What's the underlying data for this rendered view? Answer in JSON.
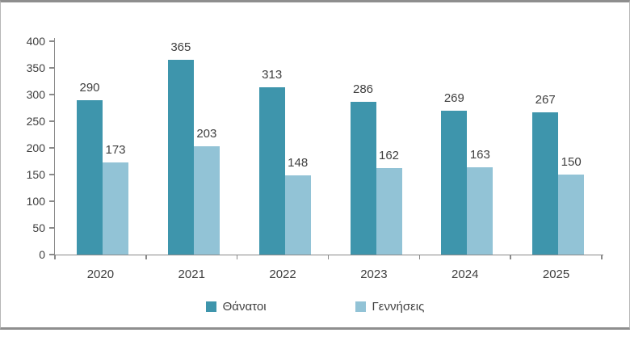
{
  "chart_data": {
    "type": "bar",
    "title": "",
    "categories": [
      "2020",
      "2021",
      "2022",
      "2023",
      "2024",
      "2025"
    ],
    "series": [
      {
        "name": "Θάνατοι",
        "color": "#3E95AC",
        "values": [
          290,
          365,
          313,
          286,
          269,
          267
        ]
      },
      {
        "name": "Γεννήσεις",
        "color": "#92C3D6",
        "values": [
          173,
          203,
          148,
          162,
          163,
          150
        ]
      }
    ],
    "xlabel": "",
    "ylabel": "",
    "ylim": [
      0,
      400
    ],
    "y_ticks": [
      0,
      50,
      100,
      150,
      200,
      250,
      300,
      350,
      400
    ],
    "grid": false,
    "data_labels": true,
    "legend_position": "bottom"
  },
  "colors": {
    "axis": "#8A8A8A",
    "text": "#3F3F3F",
    "frame_border": "#8E8E8E",
    "background": "#FFFFFF"
  }
}
